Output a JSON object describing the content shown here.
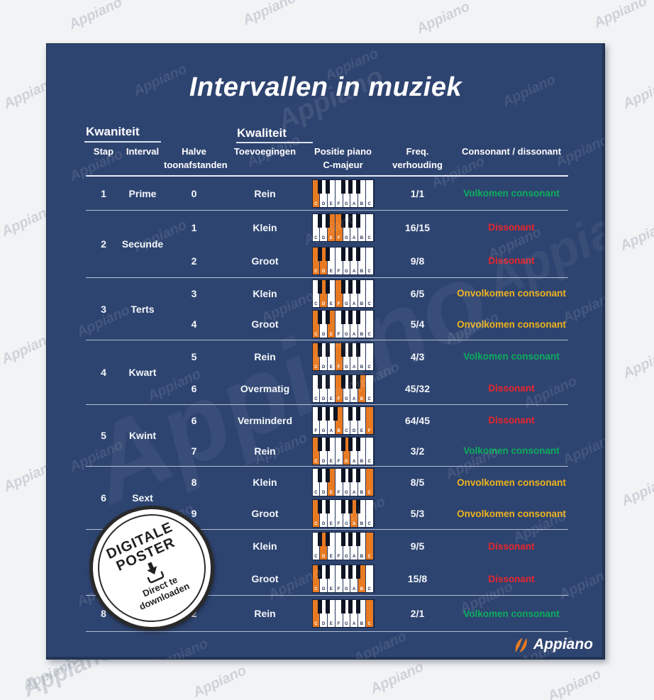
{
  "poster": {
    "title": "Intervallen in muziek",
    "watermark_text": "Appiano",
    "colors": {
      "poster_bg": "#2e4470",
      "orange": "#e87a22",
      "green": "#0cad5d",
      "yellow": "#efb31c",
      "red": "#e8262c"
    },
    "section_headers": {
      "kwaniteit": "Kwaniteit",
      "kwaliteit": "Kwaliteit"
    },
    "columns": {
      "stap": "Stap",
      "interval": "Interval",
      "halve1": "Halve",
      "halve2": "toonafstanden",
      "toevoegingen": "Toevoegingen",
      "positie1": "Positie piano",
      "positie2": "C-majeur",
      "freq": "Freq. verhouding",
      "consonant": "Consonant / dissonant"
    }
  },
  "table": {
    "groups": [
      {
        "stap": "1",
        "interval": "Prime",
        "rows": [
          {
            "halve": "0",
            "quality": "Rein",
            "freq": "1/1",
            "verdict": "Volkomen consonant",
            "verdict_color": "green",
            "keys": [
              "C",
              "D",
              "E",
              "F",
              "G",
              "A",
              "B",
              "C"
            ],
            "blacks": [
              1,
              2,
              4,
              5,
              6
            ],
            "highlights": [
              0
            ]
          }
        ]
      },
      {
        "stap": "2",
        "interval": "Secunde",
        "rows": [
          {
            "halve": "1",
            "quality": "Klein",
            "freq": "16/15",
            "verdict": "Dissonant",
            "verdict_color": "red",
            "keys": [
              "C",
              "D",
              "E",
              "F",
              "G",
              "A",
              "B",
              "C"
            ],
            "blacks": [
              1,
              2,
              4,
              5,
              6
            ],
            "highlights": [
              2,
              3
            ]
          },
          {
            "halve": "2",
            "quality": "Groot",
            "freq": "9/8",
            "verdict": "Dissonant",
            "verdict_color": "red",
            "keys": [
              "C",
              "D",
              "E",
              "F",
              "G",
              "A",
              "B",
              "C"
            ],
            "blacks": [
              1,
              2,
              4,
              5,
              6
            ],
            "highlights": [
              0,
              1
            ]
          }
        ]
      },
      {
        "stap": "3",
        "interval": "Terts",
        "rows": [
          {
            "halve": "3",
            "quality": "Klein",
            "freq": "6/5",
            "verdict": "Onvolkomen consonant",
            "verdict_color": "yellow",
            "keys": [
              "C",
              "D",
              "E",
              "F",
              "G",
              "A",
              "B",
              "C"
            ],
            "blacks": [
              1,
              2,
              4,
              5,
              6
            ],
            "highlights": [
              1,
              3
            ]
          },
          {
            "halve": "4",
            "quality": "Groot",
            "freq": "5/4",
            "verdict": "Onvolkomen consonant",
            "verdict_color": "yellow",
            "keys": [
              "C",
              "D",
              "E",
              "F",
              "G",
              "A",
              "B",
              "C"
            ],
            "blacks": [
              1,
              2,
              4,
              5,
              6
            ],
            "highlights": [
              0,
              2
            ]
          }
        ]
      },
      {
        "stap": "4",
        "interval": "Kwart",
        "rows": [
          {
            "halve": "5",
            "quality": "Rein",
            "freq": "4/3",
            "verdict": "Volkomen consonant",
            "verdict_color": "green",
            "keys": [
              "C",
              "D",
              "E",
              "F",
              "G",
              "A",
              "B",
              "C"
            ],
            "blacks": [
              1,
              2,
              4,
              5,
              6
            ],
            "highlights": [
              0,
              3
            ]
          },
          {
            "halve": "6",
            "quality": "Overmatig",
            "freq": "45/32",
            "verdict": "Dissonant",
            "verdict_color": "red",
            "keys": [
              "C",
              "D",
              "E",
              "F",
              "G",
              "A",
              "B",
              "C"
            ],
            "blacks": [
              1,
              2,
              4,
              5,
              6
            ],
            "highlights": [
              3,
              6
            ]
          }
        ]
      },
      {
        "stap": "5",
        "interval": "Kwint",
        "rows": [
          {
            "halve": "6",
            "quality": "Verminderd",
            "freq": "64/45",
            "verdict": "Dissonant",
            "verdict_color": "red",
            "keys": [
              "F",
              "G",
              "A",
              "B",
              "C",
              "D",
              "E",
              "F"
            ],
            "blacks": [
              1,
              2,
              3,
              5,
              6
            ],
            "highlights": [
              3,
              7
            ]
          },
          {
            "halve": "7",
            "quality": "Rein",
            "freq": "3/2",
            "verdict": "Volkomen consonant",
            "verdict_color": "green",
            "keys": [
              "C",
              "D",
              "E",
              "F",
              "G",
              "A",
              "B",
              "C"
            ],
            "blacks": [
              1,
              2,
              4,
              5,
              6
            ],
            "highlights": [
              0,
              4
            ]
          }
        ]
      },
      {
        "stap": "6",
        "interval": "Sext",
        "rows": [
          {
            "halve": "8",
            "quality": "Klein",
            "freq": "8/5",
            "verdict": "Onvolkomen consonant",
            "verdict_color": "yellow",
            "keys": [
              "C",
              "D",
              "E",
              "F",
              "G",
              "A",
              "B",
              "C"
            ],
            "blacks": [
              1,
              2,
              4,
              5,
              6
            ],
            "highlights": [
              2,
              7
            ]
          },
          {
            "halve": "9",
            "quality": "Groot",
            "freq": "5/3",
            "verdict": "Onvolkomen consonant",
            "verdict_color": "yellow",
            "keys": [
              "C",
              "D",
              "E",
              "F",
              "G",
              "A",
              "B",
              "C"
            ],
            "blacks": [
              1,
              2,
              4,
              5,
              6
            ],
            "highlights": [
              0,
              5
            ]
          }
        ]
      },
      {
        "stap": "",
        "interval": "",
        "rows": [
          {
            "halve": "",
            "quality": "Klein",
            "freq": "9/5",
            "verdict": "Dissonant",
            "verdict_color": "red",
            "keys": [
              "C",
              "D",
              "E",
              "F",
              "G",
              "A",
              "B",
              "C"
            ],
            "blacks": [
              1,
              2,
              4,
              5,
              6
            ],
            "highlights": [
              1,
              7
            ]
          },
          {
            "halve": "",
            "quality": "Groot",
            "freq": "15/8",
            "verdict": "Dissonant",
            "verdict_color": "red",
            "keys": [
              "C",
              "D",
              "E",
              "F",
              "G",
              "A",
              "B",
              "C"
            ],
            "blacks": [
              1,
              2,
              4,
              5,
              6
            ],
            "highlights": [
              0,
              6
            ]
          }
        ]
      },
      {
        "stap": "8",
        "interval": "",
        "rows": [
          {
            "halve": "2",
            "quality": "Rein",
            "freq": "2/1",
            "verdict": "Volkomen consonant",
            "verdict_color": "green",
            "keys": [
              "C",
              "D",
              "E",
              "F",
              "G",
              "A",
              "B",
              "C"
            ],
            "blacks": [
              1,
              2,
              4,
              5,
              6
            ],
            "highlights": [
              0,
              7
            ]
          }
        ]
      }
    ]
  },
  "badge": {
    "line1": "DIGITALE",
    "line2": "POSTER",
    "sub1": "Direct te",
    "sub2": "downloaden"
  },
  "logo": {
    "text": "Appiano"
  }
}
